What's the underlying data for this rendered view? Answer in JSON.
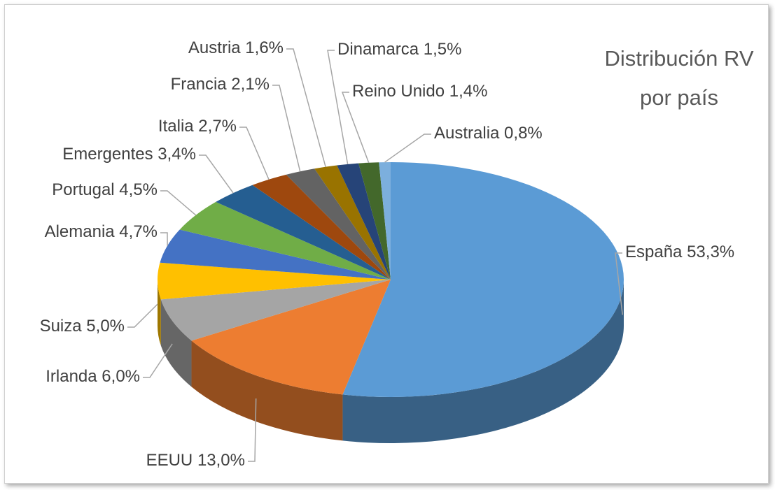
{
  "chart_data": {
    "type": "pie",
    "title": "Distribución RV por país",
    "categories": [
      "España",
      "EEUU",
      "Irlanda",
      "Suiza",
      "Alemania",
      "Portugal",
      "Emergentes",
      "Italia",
      "Francia",
      "Austria",
      "Dinamarca",
      "Reino Unido",
      "Australia"
    ],
    "values": [
      53.3,
      13.0,
      6.0,
      5.0,
      4.7,
      4.5,
      3.4,
      2.7,
      2.1,
      1.6,
      1.5,
      1.4,
      0.8
    ],
    "value_labels": [
      "53,3%",
      "13,0%",
      "6,0%",
      "5,0%",
      "4,7%",
      "4,5%",
      "3,4%",
      "2,7%",
      "2,1%",
      "1,6%",
      "1,5%",
      "1,4%",
      "0,8%"
    ],
    "colors": [
      "#5b9bd5",
      "#ed7d31",
      "#a5a5a5",
      "#ffc000",
      "#4472c4",
      "#70ad47",
      "#255e91",
      "#9e480e",
      "#636363",
      "#997300",
      "#264478",
      "#43682b",
      "#7cafdd"
    ]
  }
}
